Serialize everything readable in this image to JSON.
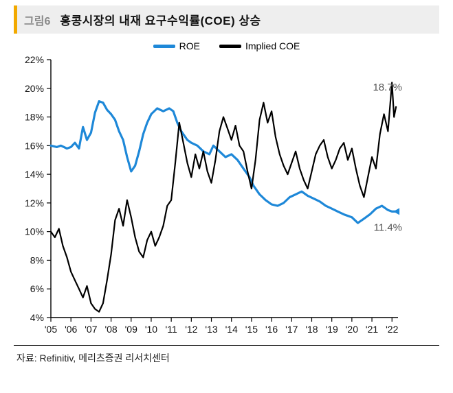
{
  "figure_label": "그림6",
  "title": "홍콩시장의 내재 요구수익률(COE) 상승",
  "source": "자료: Refinitiv, 메리츠증권 리서치센터",
  "legend": {
    "roe": "ROE",
    "coe": "Implied COE"
  },
  "annotations": {
    "roe_last": "11.4%",
    "coe_last": "18.7%"
  },
  "chart": {
    "type": "line",
    "background_color": "#ffffff",
    "grid_color": "#ffffff",
    "axis_color": "#000000",
    "tick_color": "#000000",
    "tick_fontsize": 14,
    "label_color": "#111111",
    "roe_color": "#1e88d8",
    "coe_color": "#000000",
    "line_width_roe": 3.2,
    "line_width_coe": 2.2,
    "x": [
      "'05",
      "'06",
      "'07",
      "'08",
      "'09",
      "'10",
      "'11",
      "'12",
      "'13",
      "'14",
      "'15",
      "'16",
      "'17",
      "'18",
      "'19",
      "'20",
      "'21",
      "'22"
    ],
    "xmin": 2005.0,
    "xmax": 2022.3,
    "ylim": [
      4,
      22
    ],
    "ytick_step": 2,
    "ytick_suffix": "%",
    "series": {
      "roe": [
        [
          2005.0,
          16.0
        ],
        [
          2005.3,
          15.9
        ],
        [
          2005.5,
          16.0
        ],
        [
          2005.8,
          15.8
        ],
        [
          2006.0,
          15.9
        ],
        [
          2006.2,
          16.2
        ],
        [
          2006.4,
          15.8
        ],
        [
          2006.6,
          17.3
        ],
        [
          2006.8,
          16.4
        ],
        [
          2007.0,
          16.9
        ],
        [
          2007.2,
          18.3
        ],
        [
          2007.4,
          19.1
        ],
        [
          2007.6,
          19.0
        ],
        [
          2007.8,
          18.5
        ],
        [
          2008.0,
          18.2
        ],
        [
          2008.2,
          17.8
        ],
        [
          2008.4,
          17.0
        ],
        [
          2008.6,
          16.4
        ],
        [
          2008.8,
          15.2
        ],
        [
          2009.0,
          14.2
        ],
        [
          2009.2,
          14.6
        ],
        [
          2009.4,
          15.6
        ],
        [
          2009.6,
          16.8
        ],
        [
          2009.8,
          17.6
        ],
        [
          2010.0,
          18.2
        ],
        [
          2010.3,
          18.6
        ],
        [
          2010.6,
          18.4
        ],
        [
          2010.9,
          18.6
        ],
        [
          2011.1,
          18.4
        ],
        [
          2011.3,
          17.6
        ],
        [
          2011.5,
          17.0
        ],
        [
          2011.8,
          16.4
        ],
        [
          2012.0,
          16.2
        ],
        [
          2012.3,
          16.0
        ],
        [
          2012.6,
          15.6
        ],
        [
          2012.9,
          15.4
        ],
        [
          2013.1,
          16.0
        ],
        [
          2013.4,
          15.6
        ],
        [
          2013.7,
          15.2
        ],
        [
          2014.0,
          15.4
        ],
        [
          2014.3,
          15.0
        ],
        [
          2014.6,
          14.4
        ],
        [
          2014.9,
          13.8
        ],
        [
          2015.1,
          13.2
        ],
        [
          2015.4,
          12.6
        ],
        [
          2015.7,
          12.2
        ],
        [
          2016.0,
          11.9
        ],
        [
          2016.3,
          11.8
        ],
        [
          2016.6,
          12.0
        ],
        [
          2016.9,
          12.4
        ],
        [
          2017.2,
          12.6
        ],
        [
          2017.5,
          12.8
        ],
        [
          2017.8,
          12.5
        ],
        [
          2018.1,
          12.3
        ],
        [
          2018.4,
          12.1
        ],
        [
          2018.7,
          11.8
        ],
        [
          2019.0,
          11.6
        ],
        [
          2019.3,
          11.4
        ],
        [
          2019.6,
          11.2
        ],
        [
          2020.0,
          11.0
        ],
        [
          2020.3,
          10.6
        ],
        [
          2020.6,
          10.9
        ],
        [
          2020.9,
          11.2
        ],
        [
          2021.2,
          11.6
        ],
        [
          2021.5,
          11.8
        ],
        [
          2021.8,
          11.5
        ],
        [
          2022.0,
          11.4
        ],
        [
          2022.2,
          11.4
        ]
      ],
      "coe": [
        [
          2005.0,
          10.0
        ],
        [
          2005.2,
          9.6
        ],
        [
          2005.4,
          10.2
        ],
        [
          2005.6,
          9.0
        ],
        [
          2005.8,
          8.2
        ],
        [
          2006.0,
          7.2
        ],
        [
          2006.2,
          6.6
        ],
        [
          2006.4,
          6.0
        ],
        [
          2006.6,
          5.4
        ],
        [
          2006.8,
          6.2
        ],
        [
          2007.0,
          5.0
        ],
        [
          2007.2,
          4.6
        ],
        [
          2007.4,
          4.4
        ],
        [
          2007.6,
          5.0
        ],
        [
          2007.8,
          6.6
        ],
        [
          2008.0,
          8.4
        ],
        [
          2008.2,
          10.8
        ],
        [
          2008.4,
          11.6
        ],
        [
          2008.6,
          10.4
        ],
        [
          2008.8,
          12.2
        ],
        [
          2009.0,
          11.0
        ],
        [
          2009.2,
          9.6
        ],
        [
          2009.4,
          8.6
        ],
        [
          2009.6,
          8.2
        ],
        [
          2009.8,
          9.4
        ],
        [
          2010.0,
          10.0
        ],
        [
          2010.2,
          9.0
        ],
        [
          2010.4,
          9.6
        ],
        [
          2010.6,
          10.4
        ],
        [
          2010.8,
          11.8
        ],
        [
          2011.0,
          12.2
        ],
        [
          2011.2,
          14.8
        ],
        [
          2011.4,
          17.6
        ],
        [
          2011.6,
          16.2
        ],
        [
          2011.8,
          14.8
        ],
        [
          2012.0,
          13.8
        ],
        [
          2012.2,
          15.4
        ],
        [
          2012.4,
          14.4
        ],
        [
          2012.6,
          15.6
        ],
        [
          2012.8,
          14.2
        ],
        [
          2013.0,
          13.4
        ],
        [
          2013.2,
          15.0
        ],
        [
          2013.4,
          17.0
        ],
        [
          2013.6,
          18.0
        ],
        [
          2013.8,
          17.2
        ],
        [
          2014.0,
          16.4
        ],
        [
          2014.2,
          17.4
        ],
        [
          2014.4,
          16.0
        ],
        [
          2014.6,
          15.6
        ],
        [
          2014.8,
          14.2
        ],
        [
          2015.0,
          13.0
        ],
        [
          2015.2,
          15.0
        ],
        [
          2015.4,
          17.8
        ],
        [
          2015.6,
          19.0
        ],
        [
          2015.8,
          17.6
        ],
        [
          2016.0,
          18.4
        ],
        [
          2016.2,
          16.6
        ],
        [
          2016.4,
          15.4
        ],
        [
          2016.6,
          14.6
        ],
        [
          2016.8,
          14.0
        ],
        [
          2017.0,
          14.8
        ],
        [
          2017.2,
          15.6
        ],
        [
          2017.4,
          14.4
        ],
        [
          2017.6,
          13.6
        ],
        [
          2017.8,
          13.0
        ],
        [
          2018.0,
          14.2
        ],
        [
          2018.2,
          15.4
        ],
        [
          2018.4,
          16.0
        ],
        [
          2018.6,
          16.4
        ],
        [
          2018.8,
          15.2
        ],
        [
          2019.0,
          14.4
        ],
        [
          2019.2,
          15.0
        ],
        [
          2019.4,
          15.8
        ],
        [
          2019.6,
          16.2
        ],
        [
          2019.8,
          15.0
        ],
        [
          2020.0,
          15.8
        ],
        [
          2020.2,
          14.4
        ],
        [
          2020.4,
          13.2
        ],
        [
          2020.6,
          12.4
        ],
        [
          2020.8,
          13.8
        ],
        [
          2021.0,
          15.2
        ],
        [
          2021.2,
          14.4
        ],
        [
          2021.4,
          16.8
        ],
        [
          2021.6,
          18.2
        ],
        [
          2021.8,
          17.0
        ],
        [
          2022.0,
          20.4
        ],
        [
          2022.1,
          18.0
        ],
        [
          2022.2,
          18.7
        ]
      ]
    }
  }
}
